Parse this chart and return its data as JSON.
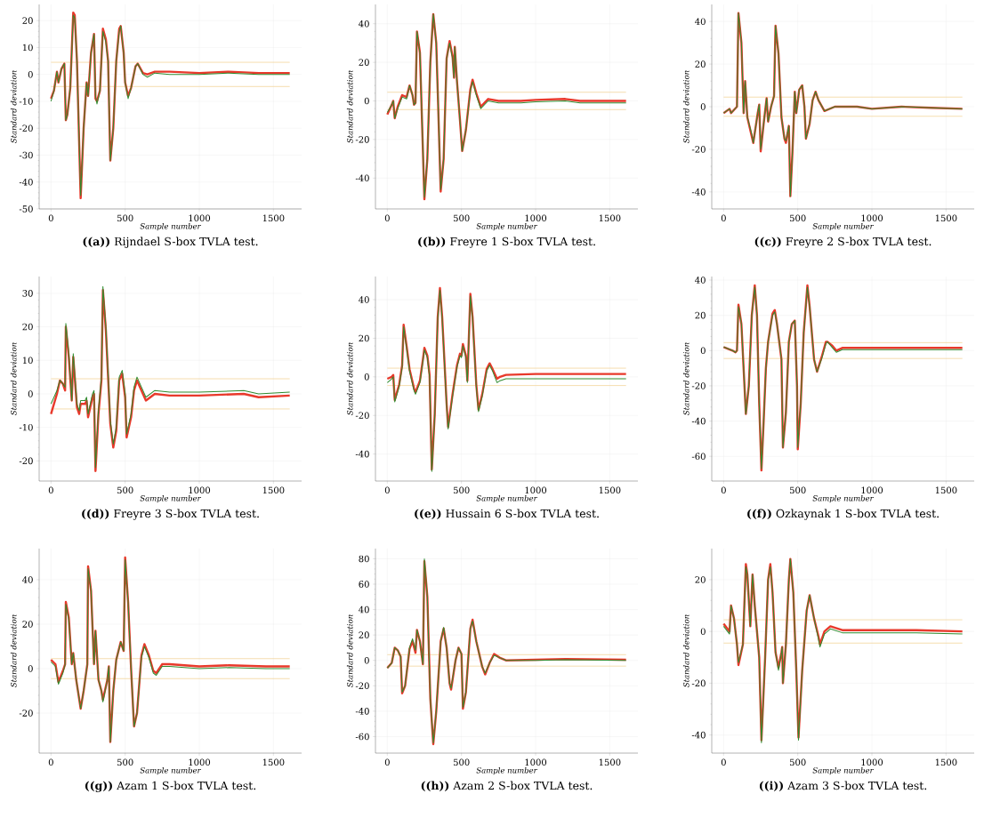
{
  "chart_data": [
    {
      "type": "line",
      "title": "**((a))** Rijndael S-box TVLA test.",
      "xlabel": "Sample number",
      "ylabel": "Standard deviation",
      "grid": true,
      "xlim": [
        -80,
        1690
      ],
      "ylim": [
        -50,
        26
      ],
      "xticks": [
        0,
        500,
        1000,
        1500
      ],
      "yticks": [
        -50,
        -40,
        -30,
        -20,
        -10,
        0,
        10,
        20
      ],
      "x": [
        0,
        20,
        40,
        50,
        70,
        90,
        100,
        110,
        130,
        150,
        160,
        175,
        200,
        220,
        240,
        250,
        270,
        290,
        300,
        310,
        330,
        350,
        370,
        385,
        400,
        420,
        440,
        460,
        470,
        490,
        500,
        520,
        540,
        570,
        585,
        620,
        650,
        700,
        800,
        1000,
        1200,
        1400,
        1610
      ],
      "series": [
        {
          "color": "#e8392b",
          "values": [
            -9,
            -6,
            1,
            -3,
            2,
            4,
            -17,
            -15,
            -5,
            23,
            22,
            5,
            -46,
            -20,
            -3,
            -8,
            8,
            15,
            -9,
            -10,
            -6,
            17,
            13,
            5,
            -32,
            -20,
            5,
            17,
            18,
            8,
            -3,
            -8,
            -5,
            3,
            4,
            0.5,
            0,
            1,
            1,
            0.5,
            1,
            0.5,
            0.5
          ]
        },
        {
          "color": "#2e8b2e",
          "values": [
            -10,
            -6,
            1,
            -3,
            2,
            4,
            -17,
            -15,
            -5,
            22,
            21,
            5,
            -45,
            -20,
            -3,
            -8,
            8,
            15,
            -8,
            -11,
            -6,
            16,
            12,
            5,
            -32,
            -20,
            5,
            16,
            18,
            8,
            -3,
            -9,
            -5,
            3,
            4,
            0,
            -1,
            0.5,
            0,
            0,
            0.5,
            0,
            0
          ]
        }
      ],
      "ref_lines": [
        {
          "axis": "y",
          "value": 4.5,
          "color": "#f3d49b"
        },
        {
          "axis": "y",
          "value": -4.5,
          "color": "#f3d49b"
        }
      ]
    },
    {
      "type": "line",
      "title": "**((b))** Freyre 1 S-box TVLA test.",
      "xlabel": "Sample number",
      "ylabel": "Standard deviation",
      "grid": true,
      "xlim": [
        -80,
        1690
      ],
      "ylim": [
        -56,
        50
      ],
      "xticks": [
        0,
        500,
        1000,
        1500
      ],
      "yticks": [
        -40,
        -20,
        0,
        20,
        40
      ],
      "x": [
        0,
        30,
        40,
        50,
        70,
        100,
        130,
        150,
        170,
        180,
        190,
        200,
        220,
        250,
        270,
        290,
        310,
        330,
        340,
        360,
        380,
        400,
        420,
        440,
        450,
        455,
        470,
        490,
        505,
        530,
        560,
        575,
        600,
        630,
        680,
        750,
        900,
        1000,
        1200,
        1300,
        1610
      ],
      "series": [
        {
          "color": "#e8392b",
          "values": [
            -7,
            -2,
            0,
            -9,
            -3,
            3,
            2,
            8,
            3,
            -2,
            -1,
            36,
            25,
            -51,
            -30,
            20,
            45,
            30,
            5,
            -47,
            -30,
            22,
            31,
            23,
            12,
            28,
            10,
            -10,
            -26,
            -15,
            6,
            11,
            4,
            -3,
            1,
            0,
            0,
            0.5,
            1,
            0,
            0
          ]
        },
        {
          "color": "#2e8b2e",
          "values": [
            -6,
            -2,
            0,
            -9,
            -4,
            2,
            1,
            8,
            3,
            -2,
            -1,
            36,
            25,
            -50,
            -30,
            20,
            45,
            30,
            5,
            -46,
            -30,
            22,
            30,
            22,
            12,
            28,
            10,
            -10,
            -26,
            -15,
            5,
            10,
            3,
            -4,
            0,
            -1,
            -1,
            -0.5,
            0,
            -1,
            -1
          ]
        }
      ],
      "ref_lines": [
        {
          "axis": "y",
          "value": 4.5,
          "color": "#f3d49b"
        },
        {
          "axis": "y",
          "value": -4.5,
          "color": "#f3d49b"
        }
      ]
    },
    {
      "type": "line",
      "title": "**((c))** Freyre 2 S-box TVLA test.",
      "xlabel": "Sample number",
      "ylabel": "Standard deviation",
      "grid": true,
      "xlim": [
        -80,
        1690
      ],
      "ylim": [
        -48,
        48
      ],
      "xticks": [
        0,
        500,
        1000,
        1500
      ],
      "yticks": [
        -40,
        -20,
        0,
        20,
        40
      ],
      "x": [
        0,
        40,
        50,
        90,
        100,
        120,
        135,
        145,
        160,
        190,
        200,
        230,
        240,
        250,
        270,
        290,
        300,
        320,
        340,
        350,
        370,
        390,
        410,
        420,
        440,
        450,
        465,
        480,
        490,
        510,
        530,
        545,
        555,
        580,
        600,
        620,
        640,
        680,
        750,
        900,
        1000,
        1200,
        1400,
        1610
      ],
      "series": [
        {
          "color": "#e8392b",
          "values": [
            -3,
            -1,
            -3,
            0,
            44,
            30,
            -3,
            12,
            -5,
            -14,
            -17,
            -3,
            1,
            -21,
            -8,
            4,
            -7,
            0,
            5,
            38,
            25,
            -5,
            -15,
            -17,
            -9,
            -42,
            -20,
            7,
            -3,
            8,
            10,
            0,
            -15,
            -8,
            3,
            7,
            3,
            -2,
            0,
            0,
            -1,
            0,
            -0.5,
            -1
          ]
        },
        {
          "color": "#2e8b2e",
          "values": [
            -3,
            -1,
            -3,
            0,
            44,
            30,
            -3,
            12,
            -5,
            -13,
            -17,
            -3,
            1,
            -20,
            -8,
            4,
            -7,
            0,
            5,
            38,
            25,
            -5,
            -15,
            -16,
            -9,
            -42,
            -20,
            7,
            -3,
            8,
            10,
            0,
            -15,
            -8,
            3,
            7,
            3,
            -2,
            0,
            0,
            -1,
            0,
            -0.5,
            -1
          ]
        }
      ],
      "ref_lines": [
        {
          "axis": "y",
          "value": 4.5,
          "color": "#f3d49b"
        },
        {
          "axis": "y",
          "value": -4.5,
          "color": "#f3d49b"
        }
      ]
    },
    {
      "type": "line",
      "title": "**((d))** Freyre 3 S-box TVLA test.",
      "xlabel": "Sample number",
      "ylabel": "Standard deviation",
      "grid": true,
      "xlim": [
        -80,
        1690
      ],
      "ylim": [
        -26,
        35
      ],
      "xticks": [
        0,
        500,
        1000,
        1500
      ],
      "yticks": [
        -20,
        -10,
        0,
        10,
        20,
        30
      ],
      "x": [
        0,
        40,
        60,
        80,
        95,
        100,
        120,
        140,
        150,
        175,
        190,
        200,
        230,
        240,
        250,
        280,
        290,
        300,
        320,
        340,
        350,
        370,
        400,
        420,
        440,
        460,
        480,
        500,
        510,
        540,
        560,
        580,
        600,
        640,
        700,
        800,
        1000,
        1300,
        1400,
        1610
      ],
      "series": [
        {
          "color": "#e8392b",
          "values": [
            -6,
            0,
            4,
            3,
            1,
            20,
            11,
            -2,
            11,
            -4,
            -6,
            -3,
            -3,
            -2,
            -7,
            -1,
            0,
            -23,
            -6,
            4,
            31,
            19,
            -9,
            -16,
            -11,
            4,
            6,
            -1,
            -13,
            -7,
            1,
            4,
            2,
            -2,
            0,
            -0.5,
            -0.5,
            0,
            -1,
            -0.5
          ]
        },
        {
          "color": "#2e8b2e",
          "values": [
            -3,
            1,
            4,
            3,
            2,
            21,
            12,
            -2,
            12,
            -3,
            -5,
            -2,
            -2,
            -1,
            -6,
            0,
            1,
            -22,
            -5,
            5,
            32,
            20,
            -8,
            -15,
            -10,
            5,
            7,
            0,
            -12,
            -6,
            2,
            5,
            3,
            -1,
            1,
            0.5,
            0.5,
            1,
            0,
            0.5
          ]
        }
      ],
      "ref_lines": [
        {
          "axis": "y",
          "value": 4.5,
          "color": "#f3d49b"
        },
        {
          "axis": "y",
          "value": -4.5,
          "color": "#f3d49b"
        }
      ]
    },
    {
      "type": "line",
      "title": "**((e))** Hussain 6 S-box TVLA test.",
      "xlabel": "Sample number",
      "ylabel": "Standard deviation",
      "grid": true,
      "xlim": [
        -80,
        1690
      ],
      "ylim": [
        -54,
        52
      ],
      "xticks": [
        0,
        500,
        1000,
        1500
      ],
      "yticks": [
        -40,
        -20,
        0,
        20,
        40
      ],
      "x": [
        0,
        30,
        40,
        50,
        80,
        100,
        110,
        130,
        150,
        180,
        190,
        220,
        240,
        250,
        270,
        285,
        300,
        320,
        340,
        355,
        370,
        400,
        410,
        440,
        470,
        490,
        500,
        510,
        530,
        540,
        560,
        575,
        600,
        615,
        640,
        670,
        690,
        710,
        740,
        760,
        800,
        1000,
        1200,
        1610
      ],
      "series": [
        {
          "color": "#e8392b",
          "values": [
            -1,
            0,
            1,
            -12,
            -4,
            6,
            27,
            16,
            4,
            -6,
            -8,
            -2,
            9,
            15,
            11,
            1,
            -48,
            -19,
            31,
            46,
            31,
            -14,
            -26,
            -9,
            6,
            12,
            11,
            17,
            11,
            -2,
            43,
            31,
            -4,
            -17,
            -9,
            4,
            7,
            4,
            -1,
            0,
            1,
            1.5,
            1.5,
            1.5
          ]
        },
        {
          "color": "#2e8b2e",
          "values": [
            -3,
            -1,
            0,
            -13,
            -5,
            5,
            26,
            15,
            3,
            -7,
            -9,
            -3,
            8,
            14,
            10,
            0,
            -49,
            -20,
            30,
            45,
            30,
            -15,
            -27,
            -10,
            5,
            11,
            10,
            16,
            10,
            -3,
            42,
            30,
            -5,
            -18,
            -10,
            3,
            6,
            3,
            -3,
            -2,
            -1,
            -1,
            -1,
            -1
          ]
        }
      ],
      "ref_lines": [
        {
          "axis": "y",
          "value": 4.5,
          "color": "#f3d49b"
        },
        {
          "axis": "y",
          "value": -4.5,
          "color": "#f3d49b"
        }
      ]
    },
    {
      "type": "line",
      "title": "**((f))** Ozkaynak 1 S-box TVLA test.",
      "xlabel": "Sample number",
      "ylabel": "Standard deviation",
      "grid": true,
      "xlim": [
        -80,
        1690
      ],
      "ylim": [
        -74,
        42
      ],
      "xticks": [
        0,
        500,
        1000,
        1500
      ],
      "yticks": [
        -60,
        -40,
        -20,
        0,
        20,
        40
      ],
      "x": [
        0,
        60,
        80,
        90,
        100,
        120,
        150,
        170,
        190,
        210,
        225,
        240,
        255,
        270,
        285,
        300,
        330,
        345,
        360,
        390,
        400,
        420,
        440,
        460,
        480,
        495,
        500,
        520,
        540,
        565,
        580,
        610,
        630,
        660,
        690,
        700,
        730,
        760,
        800,
        1000,
        1200,
        1610
      ],
      "series": [
        {
          "color": "#e8392b",
          "values": [
            2,
            0,
            -1,
            0,
            26,
            15,
            -36,
            -20,
            20,
            37,
            20,
            -30,
            -68,
            -40,
            -10,
            5,
            21,
            23,
            15,
            -5,
            -55,
            -35,
            5,
            15,
            17,
            -20,
            -56,
            -30,
            10,
            37,
            25,
            -5,
            -12,
            -4,
            5,
            5,
            3,
            0,
            1.5,
            1.5,
            1.5,
            1.5
          ]
        },
        {
          "color": "#2e8b2e",
          "values": [
            2,
            0,
            -1,
            0,
            25,
            15,
            -36,
            -20,
            20,
            36,
            20,
            -30,
            -67,
            -40,
            -10,
            5,
            20,
            22,
            15,
            -5,
            -55,
            -35,
            5,
            15,
            17,
            -20,
            -55,
            -30,
            10,
            36,
            25,
            -5,
            -12,
            -5,
            4,
            5,
            2,
            -1,
            0.5,
            0.5,
            0.5,
            0.5
          ]
        }
      ],
      "ref_lines": [
        {
          "axis": "y",
          "value": 4.5,
          "color": "#f3d49b"
        },
        {
          "axis": "y",
          "value": -4.5,
          "color": "#f3d49b"
        }
      ]
    },
    {
      "type": "line",
      "title": "**((g))** Azam 1 S-box TVLA test.",
      "xlabel": "Sample number",
      "ylabel": "Standard deviation",
      "grid": true,
      "xlim": [
        -80,
        1690
      ],
      "ylim": [
        -38,
        54
      ],
      "xticks": [
        0,
        500,
        1000,
        1500
      ],
      "yticks": [
        -20,
        0,
        20,
        40
      ],
      "x": [
        0,
        30,
        50,
        80,
        95,
        100,
        120,
        140,
        150,
        170,
        200,
        220,
        245,
        250,
        270,
        290,
        300,
        320,
        340,
        350,
        380,
        390,
        400,
        420,
        440,
        470,
        490,
        500,
        520,
        540,
        560,
        580,
        610,
        630,
        660,
        690,
        710,
        750,
        800,
        1000,
        1200,
        1450,
        1610
      ],
      "series": [
        {
          "color": "#e8392b",
          "values": [
            4,
            2,
            -6,
            -1,
            2,
            30,
            23,
            2,
            7,
            -5,
            -18,
            -10,
            2,
            46,
            35,
            2,
            17,
            -5,
            -10,
            -14,
            -5,
            1,
            -33,
            -10,
            4,
            12,
            8,
            50,
            30,
            0,
            -26,
            -20,
            6,
            11,
            6,
            -1,
            -2,
            2,
            2,
            1,
            1.5,
            1,
            1
          ]
        },
        {
          "color": "#2e8b2e",
          "values": [
            3,
            1,
            -7,
            -2,
            2,
            29,
            22,
            2,
            7,
            -5,
            -18,
            -10,
            2,
            45,
            35,
            2,
            17,
            -5,
            -10,
            -15,
            -5,
            1,
            -33,
            -10,
            4,
            12,
            8,
            49,
            30,
            0,
            -26,
            -20,
            5,
            10,
            5,
            -2,
            -3,
            1,
            1,
            0,
            0.5,
            0,
            0
          ]
        }
      ],
      "ref_lines": [
        {
          "axis": "y",
          "value": 4.5,
          "color": "#f3d49b"
        },
        {
          "axis": "y",
          "value": -4.5,
          "color": "#f3d49b"
        }
      ]
    },
    {
      "type": "line",
      "title": "**((h))** Azam 2 S-box TVLA test.",
      "xlabel": "Sample number",
      "ylabel": "Standard deviation",
      "grid": true,
      "xlim": [
        -80,
        1690
      ],
      "ylim": [
        -73,
        88
      ],
      "xticks": [
        0,
        500,
        1000,
        1500
      ],
      "yticks": [
        -60,
        -40,
        -20,
        0,
        20,
        40,
        60,
        80
      ],
      "x": [
        0,
        30,
        50,
        70,
        90,
        100,
        120,
        150,
        170,
        190,
        200,
        220,
        240,
        250,
        270,
        290,
        310,
        330,
        360,
        380,
        400,
        420,
        430,
        460,
        480,
        500,
        510,
        530,
        560,
        575,
        600,
        640,
        660,
        690,
        720,
        760,
        800,
        1000,
        1200,
        1610
      ],
      "series": [
        {
          "color": "#e8392b",
          "values": [
            -6,
            -2,
            10,
            8,
            3,
            -26,
            -20,
            9,
            15,
            6,
            24,
            15,
            -3,
            78,
            50,
            -30,
            -66,
            -40,
            15,
            25,
            10,
            -18,
            -23,
            0,
            10,
            5,
            -38,
            -25,
            25,
            32,
            15,
            -5,
            -11,
            -2,
            5,
            2,
            0,
            0.5,
            1,
            0.5
          ]
        },
        {
          "color": "#2e8b2e",
          "values": [
            -6,
            -2,
            10,
            8,
            3,
            -25,
            -20,
            10,
            17,
            8,
            24,
            15,
            -3,
            80,
            50,
            -30,
            -65,
            -40,
            15,
            26,
            10,
            -18,
            -22,
            0,
            10,
            5,
            -37,
            -25,
            25,
            31,
            15,
            -5,
            -10,
            -2,
            4,
            2,
            0,
            0,
            0.5,
            0
          ]
        }
      ],
      "ref_lines": [
        {
          "axis": "y",
          "value": 4.5,
          "color": "#f3d49b"
        },
        {
          "axis": "y",
          "value": -4.5,
          "color": "#f3d49b"
        }
      ]
    },
    {
      "type": "line",
      "title": "**((i))** Azam 3 S-box TVLA test.",
      "xlabel": "Sample number",
      "ylabel": "Standard deviation",
      "grid": true,
      "xlim": [
        -80,
        1690
      ],
      "ylim": [
        -47,
        32
      ],
      "xticks": [
        0,
        500,
        1000,
        1500
      ],
      "yticks": [
        -40,
        -20,
        0,
        20
      ],
      "x": [
        0,
        40,
        50,
        70,
        90,
        100,
        130,
        150,
        160,
        180,
        195,
        210,
        240,
        255,
        280,
        300,
        315,
        330,
        350,
        370,
        390,
        395,
        400,
        420,
        440,
        450,
        470,
        490,
        505,
        530,
        560,
        580,
        610,
        640,
        650,
        680,
        720,
        800,
        1000,
        1300,
        1610
      ],
      "series": [
        {
          "color": "#e8392b",
          "values": [
            3,
            0,
            10,
            5,
            -5,
            -13,
            -5,
            26,
            22,
            2,
            22,
            10,
            -10,
            -42,
            -10,
            20,
            26,
            15,
            -8,
            -14,
            -8,
            -6,
            -20,
            -5,
            20,
            28,
            15,
            -15,
            -41,
            -15,
            8,
            14,
            5,
            -2,
            -5,
            0,
            2,
            0.5,
            0.5,
            0.5,
            0
          ]
        },
        {
          "color": "#2e8b2e",
          "values": [
            2,
            -1,
            10,
            5,
            -5,
            -12,
            -5,
            25,
            22,
            2,
            22,
            10,
            -10,
            -43,
            -10,
            20,
            25,
            15,
            -8,
            -15,
            -8,
            -6,
            -20,
            -5,
            20,
            28,
            15,
            -15,
            -42,
            -15,
            8,
            14,
            5,
            -3,
            -6,
            -1,
            1,
            -0.5,
            -0.5,
            -0.5,
            -1
          ]
        }
      ],
      "ref_lines": [
        {
          "axis": "y",
          "value": 4.5,
          "color": "#f3d49b"
        },
        {
          "axis": "y",
          "value": -4.5,
          "color": "#f3d49b"
        }
      ]
    }
  ]
}
